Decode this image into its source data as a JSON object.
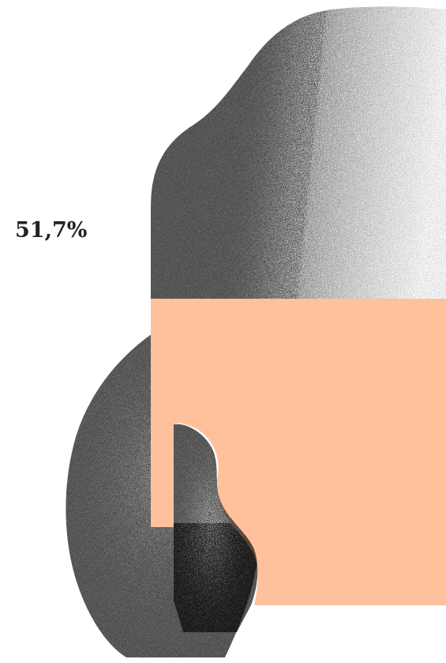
{
  "stat": {
    "value_text": "51,7%"
  },
  "colors": {
    "accent": "#ffc19c",
    "ink": "#000000",
    "paper": "#ffffff",
    "text": "#222222"
  }
}
